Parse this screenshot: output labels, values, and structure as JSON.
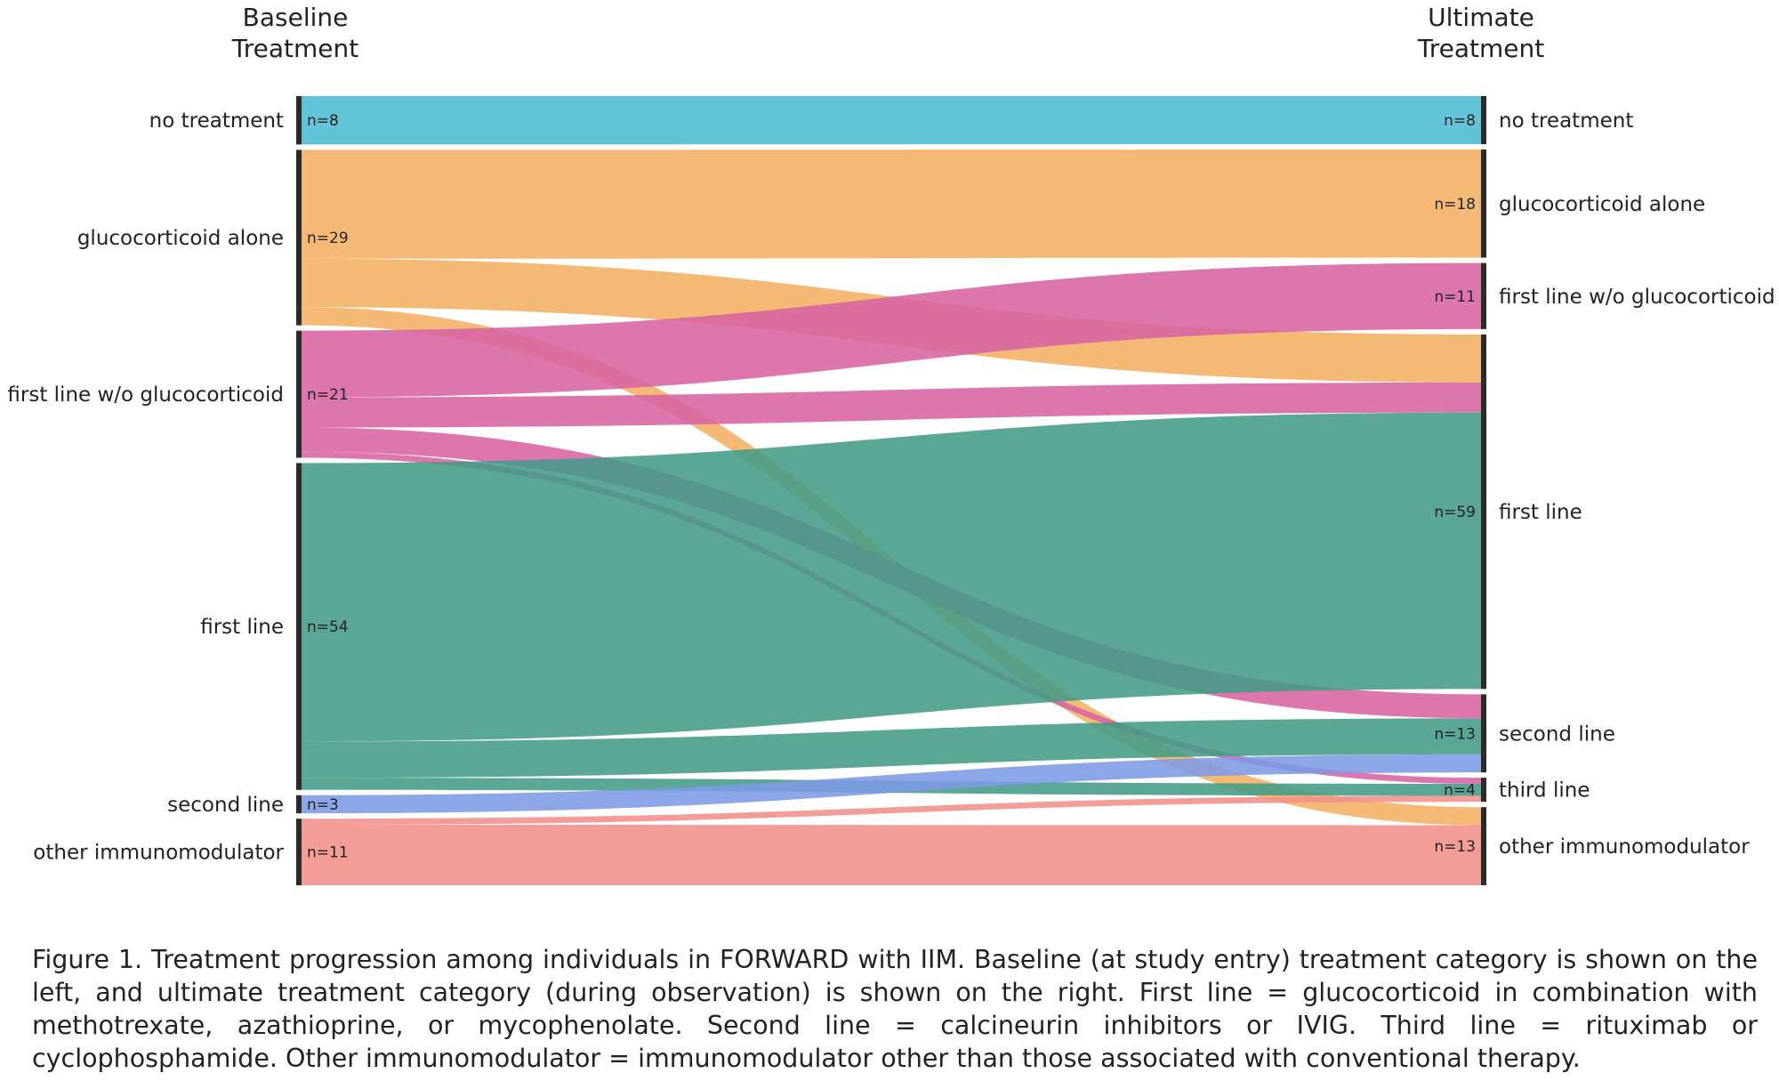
{
  "chart_data": {
    "type": "sankey",
    "left_title": [
      "Baseline",
      "Treatment"
    ],
    "right_title": [
      "Ultimate",
      "Treatment"
    ],
    "left_nodes": [
      {
        "id": "no treatment",
        "label": "no treatment",
        "count": "n=8"
      },
      {
        "id": "glucocorticoid alone",
        "label": "glucocorticoid alone",
        "count": "n=29"
      },
      {
        "id": "first line w/o glucocorticoid",
        "label": "first line w/o glucocorticoid",
        "count": "n=21"
      },
      {
        "id": "first line",
        "label": "first line",
        "count": "n=54"
      },
      {
        "id": "second line",
        "label": "second line",
        "count": "n=3"
      },
      {
        "id": "other immunomodulator",
        "label": "other immunomodulator",
        "count": "n=11"
      }
    ],
    "right_nodes": [
      {
        "id": "no treatment",
        "label": "no treatment",
        "count": "n=8"
      },
      {
        "id": "glucocorticoid alone",
        "label": "glucocorticoid alone",
        "count": "n=18"
      },
      {
        "id": "first line w/o glucocorticoid",
        "label": "first line w/o glucocorticoid",
        "count": "n=11"
      },
      {
        "id": "first line",
        "label": "first line",
        "count": "n=59"
      },
      {
        "id": "second line",
        "label": "second line",
        "count": "n=13"
      },
      {
        "id": "third line",
        "label": "third line",
        "count": "n=4"
      },
      {
        "id": "other immunomodulator",
        "label": "other immunomodulator",
        "count": "n=13"
      }
    ],
    "colors": {
      "no treatment": "#4dbcd4",
      "glucocorticoid alone": "#f2b062",
      "first line w/o glucocorticoid": "#d763a2",
      "first line": "#439b88",
      "second line": "#7c9ae5",
      "other immunomodulator": "#f28f8a"
    },
    "flows": [
      {
        "source": "no treatment",
        "target": "no treatment",
        "value": 8
      },
      {
        "source": "glucocorticoid alone",
        "target": "glucocorticoid alone",
        "value": 18
      },
      {
        "source": "glucocorticoid alone",
        "target": "first line",
        "value": 8
      },
      {
        "source": "glucocorticoid alone",
        "target": "other immunomodulator",
        "value": 3
      },
      {
        "source": "first line w/o glucocorticoid",
        "target": "first line w/o glucocorticoid",
        "value": 11
      },
      {
        "source": "first line w/o glucocorticoid",
        "target": "first line",
        "value": 5
      },
      {
        "source": "first line w/o glucocorticoid",
        "target": "second line",
        "value": 4
      },
      {
        "source": "first line w/o glucocorticoid",
        "target": "third line",
        "value": 1
      },
      {
        "source": "first line",
        "target": "first line",
        "value": 46
      },
      {
        "source": "first line",
        "target": "second line",
        "value": 6
      },
      {
        "source": "first line",
        "target": "third line",
        "value": 2
      },
      {
        "source": "second line",
        "target": "second line",
        "value": 3
      },
      {
        "source": "other immunomodulator",
        "target": "third line",
        "value": 1
      },
      {
        "source": "other immunomodulator",
        "target": "other immunomodulator",
        "value": 10
      }
    ]
  },
  "caption": "Figure 1. Treatment progression among individuals in FORWARD with IIM. Baseline (at study entry) treatment category is shown on the left, and ultimate treatment category (during observation) is shown on the right. First line = glucocorticoid in combination with methotrexate, azathioprine, or mycophenolate. Second line = calcineurin inhibitors or IVIG. Third line = rituximab or cyclophosphamide. Other immunomodulator = immunomodulator other than those associated with conventional therapy."
}
